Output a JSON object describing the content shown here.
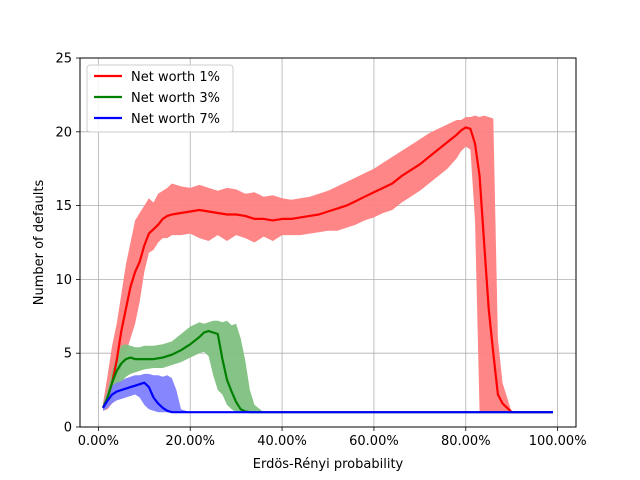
{
  "chart_data": {
    "type": "line",
    "title": "",
    "xlabel": "Erdös-Rényi probability",
    "ylabel": "Number of defaults",
    "xlim": [
      -0.04,
      1.04
    ],
    "ylim": [
      0,
      25
    ],
    "xticks": [
      0,
      0.2,
      0.4,
      0.6,
      0.8,
      1.0
    ],
    "xtick_labels": [
      "0.00%",
      "20.00%",
      "40.00%",
      "60.00%",
      "80.00%",
      "100.00%"
    ],
    "yticks": [
      0,
      5,
      10,
      15,
      20,
      25
    ],
    "ytick_labels": [
      "0",
      "5",
      "10",
      "15",
      "20",
      "25"
    ],
    "grid": true,
    "legend_position": "top-left",
    "series": [
      {
        "name": "Net worth 1%",
        "color": "#ff0000",
        "band_color": "#ff8080",
        "x": [
          0.01,
          0.02,
          0.03,
          0.04,
          0.05,
          0.06,
          0.07,
          0.08,
          0.09,
          0.1,
          0.11,
          0.12,
          0.13,
          0.14,
          0.15,
          0.16,
          0.18,
          0.2,
          0.22,
          0.24,
          0.26,
          0.28,
          0.3,
          0.32,
          0.34,
          0.36,
          0.38,
          0.4,
          0.42,
          0.44,
          0.46,
          0.48,
          0.5,
          0.52,
          0.54,
          0.56,
          0.58,
          0.6,
          0.62,
          0.64,
          0.66,
          0.68,
          0.7,
          0.72,
          0.74,
          0.76,
          0.78,
          0.79,
          0.8,
          0.81,
          0.82,
          0.83,
          0.84,
          0.85,
          0.86,
          0.87,
          0.88,
          0.89,
          0.9,
          0.92,
          0.95,
          0.99
        ],
        "y": [
          1.3,
          2.0,
          3.0,
          4.5,
          6.5,
          8.0,
          9.5,
          10.5,
          11.2,
          12.3,
          13.1,
          13.4,
          13.7,
          14.1,
          14.3,
          14.4,
          14.5,
          14.6,
          14.7,
          14.6,
          14.5,
          14.4,
          14.4,
          14.3,
          14.1,
          14.1,
          14.0,
          14.1,
          14.1,
          14.2,
          14.3,
          14.4,
          14.6,
          14.8,
          15.0,
          15.3,
          15.6,
          15.9,
          16.2,
          16.5,
          17.0,
          17.4,
          17.8,
          18.3,
          18.8,
          19.3,
          19.8,
          20.1,
          20.3,
          20.2,
          19.2,
          17.0,
          12.5,
          8.0,
          5.0,
          2.2,
          1.6,
          1.3,
          1.0,
          1.0,
          1.0,
          1.0
        ],
        "lower": [
          1.1,
          1.2,
          1.6,
          2.5,
          4.0,
          5.0,
          6.0,
          7.0,
          8.5,
          10.5,
          11.8,
          12.0,
          12.5,
          12.8,
          12.8,
          13.0,
          13.0,
          13.1,
          12.8,
          12.6,
          13.0,
          12.6,
          13.0,
          12.8,
          12.5,
          12.9,
          12.6,
          13.0,
          13.0,
          13.0,
          13.1,
          13.2,
          13.3,
          13.3,
          13.5,
          13.7,
          14.0,
          14.2,
          14.5,
          14.7,
          15.2,
          15.6,
          16.0,
          16.5,
          17.0,
          17.5,
          18.2,
          18.7,
          19.0,
          18.8,
          14.0,
          1.0,
          1.0,
          1.0,
          1.0,
          1.0,
          1.0,
          1.0,
          1.0,
          1.0,
          1.0,
          1.0
        ],
        "upper": [
          1.6,
          3.5,
          5.5,
          7.0,
          9.0,
          11.0,
          12.5,
          14.0,
          14.5,
          15.0,
          15.5,
          15.2,
          15.8,
          16.0,
          16.2,
          16.5,
          16.3,
          16.2,
          16.4,
          16.2,
          16.0,
          16.2,
          16.1,
          15.8,
          15.9,
          15.6,
          15.7,
          15.5,
          15.4,
          15.5,
          15.6,
          15.8,
          16.0,
          16.3,
          16.6,
          16.9,
          17.2,
          17.5,
          17.9,
          18.3,
          18.7,
          19.1,
          19.5,
          19.9,
          20.2,
          20.5,
          20.8,
          20.8,
          21.0,
          21.0,
          21.1,
          21.0,
          21.1,
          21.0,
          20.9,
          6.0,
          3.0,
          2.0,
          1.0,
          1.0,
          1.0,
          1.0
        ]
      },
      {
        "name": "Net worth 3%",
        "color": "#008000",
        "band_color": "#80c080",
        "x": [
          0.01,
          0.02,
          0.03,
          0.04,
          0.05,
          0.06,
          0.07,
          0.08,
          0.09,
          0.1,
          0.12,
          0.14,
          0.16,
          0.18,
          0.2,
          0.22,
          0.23,
          0.24,
          0.25,
          0.26,
          0.27,
          0.28,
          0.29,
          0.3,
          0.31,
          0.32,
          0.33,
          0.34,
          0.36,
          0.4,
          0.6,
          0.8,
          0.99
        ],
        "y": [
          1.3,
          2.0,
          3.0,
          3.8,
          4.3,
          4.6,
          4.7,
          4.6,
          4.6,
          4.6,
          4.6,
          4.7,
          4.9,
          5.2,
          5.6,
          6.1,
          6.4,
          6.5,
          6.4,
          6.3,
          4.6,
          3.2,
          2.4,
          1.7,
          1.2,
          1.05,
          1.0,
          1.0,
          1.0,
          1.0,
          1.0,
          1.0,
          1.0
        ],
        "lower": [
          1.1,
          1.3,
          1.8,
          2.5,
          3.0,
          3.4,
          3.6,
          3.7,
          3.8,
          3.9,
          4.0,
          4.0,
          4.2,
          4.4,
          4.7,
          5.0,
          5.1,
          4.8,
          3.5,
          2.5,
          2.2,
          1.5,
          1.2,
          1.0,
          1.0,
          1.0,
          1.0,
          1.0,
          1.0,
          1.0,
          1.0,
          1.0,
          1.0
        ],
        "upper": [
          1.5,
          2.5,
          3.8,
          4.8,
          5.5,
          5.6,
          5.5,
          5.4,
          5.4,
          5.5,
          5.5,
          5.6,
          5.8,
          6.3,
          6.8,
          7.1,
          7.0,
          7.1,
          7.2,
          7.2,
          7.1,
          7.2,
          6.9,
          7.0,
          6.0,
          4.5,
          2.5,
          1.5,
          1.0,
          1.0,
          1.0,
          1.0,
          1.0
        ]
      },
      {
        "name": "Net worth 7%",
        "color": "#0000ff",
        "band_color": "#8080ff",
        "x": [
          0.01,
          0.02,
          0.03,
          0.04,
          0.05,
          0.06,
          0.07,
          0.08,
          0.09,
          0.1,
          0.11,
          0.12,
          0.13,
          0.14,
          0.15,
          0.16,
          0.17,
          0.18,
          0.2,
          0.4,
          0.6,
          0.8,
          0.99
        ],
        "y": [
          1.3,
          1.8,
          2.2,
          2.4,
          2.5,
          2.6,
          2.7,
          2.8,
          2.9,
          3.0,
          2.7,
          2.0,
          1.6,
          1.3,
          1.1,
          1.0,
          1.0,
          1.0,
          1.0,
          1.0,
          1.0,
          1.0,
          1.0
        ],
        "lower": [
          1.1,
          1.3,
          1.6,
          1.8,
          1.9,
          2.0,
          2.1,
          2.2,
          2.0,
          1.5,
          1.2,
          1.1,
          1.0,
          1.0,
          1.0,
          1.0,
          1.0,
          1.0,
          1.0,
          1.0,
          1.0,
          1.0,
          1.0
        ],
        "upper": [
          1.5,
          2.3,
          2.8,
          3.0,
          3.1,
          3.3,
          3.4,
          3.5,
          3.5,
          3.6,
          3.6,
          3.5,
          3.5,
          3.4,
          3.5,
          3.3,
          2.5,
          1.2,
          1.0,
          1.0,
          1.0,
          1.0,
          1.0
        ]
      }
    ]
  }
}
